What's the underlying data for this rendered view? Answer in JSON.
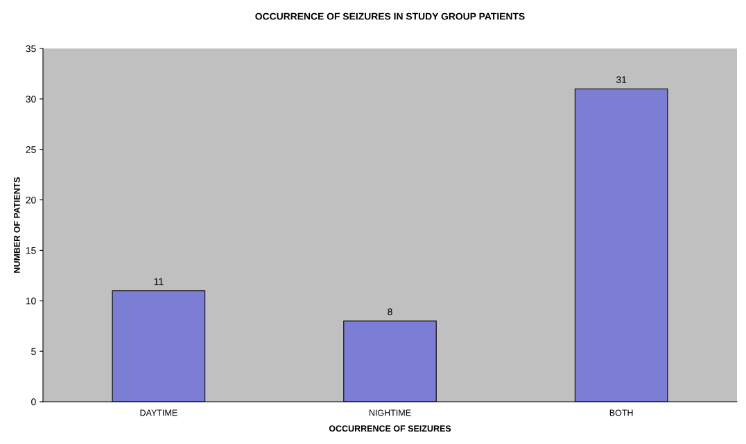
{
  "chart_data": {
    "type": "bar",
    "title": "OCCURRENCE OF SEIZURES IN STUDY GROUP PATIENTS",
    "xlabel": "OCCURRENCE OF SEIZURES",
    "ylabel": "NUMBER OF PATIENTS",
    "categories": [
      "DAYTIME",
      "NIGHTIME",
      "BOTH"
    ],
    "values": [
      11,
      8,
      31
    ],
    "color": "#7c7ed6",
    "ylim": [
      0,
      35
    ],
    "yticks": [
      0,
      5,
      10,
      15,
      20,
      25,
      30,
      35
    ],
    "grid": false,
    "legend": false,
    "data_labels": true
  }
}
